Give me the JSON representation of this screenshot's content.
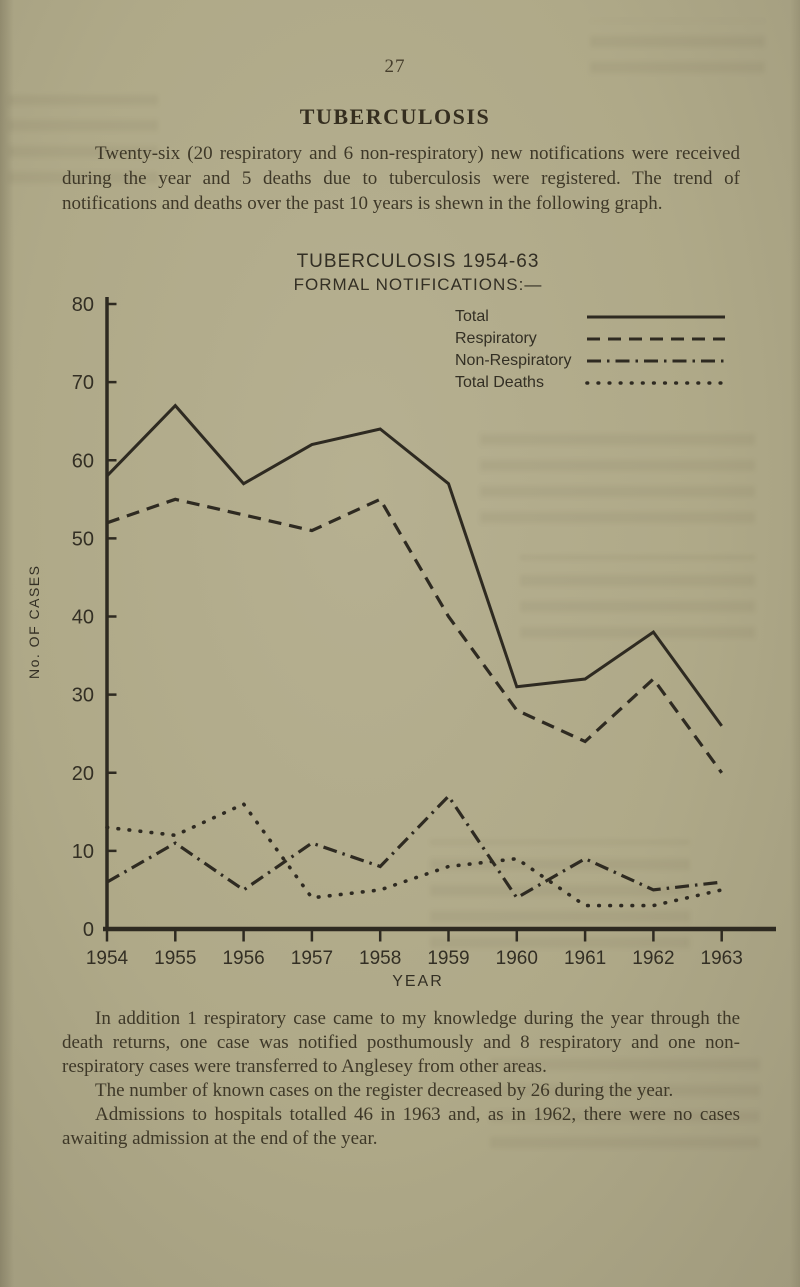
{
  "page": {
    "number": "27",
    "title": "TUBERCULOSIS",
    "intro": "Twenty-six (20 respiratory and 6 non-respiratory) new notifications were received during the year and 5 deaths due to tuberculosis were registered.  The trend of notifications and deaths over the past 10 years is shewn in the following graph.",
    "para_addition": "In addition 1 respiratory case came to my knowledge during the year through the death returns, one case was notified posthumously and 8 respiratory and one non-respiratory cases were transferred to Anglesey from other areas.",
    "para_register": "The number of known cases on the register decreased by 26 during the year.",
    "para_admissions": "Admissions to hospitals totalled 46 in 1963 and, as in 1962, there were no cases awaiting admission at the end of the year."
  },
  "chart_data": {
    "type": "line",
    "title": "TUBERCULOSIS 1954-63",
    "subtitle": "FORMAL NOTIFICATIONS:—",
    "xlabel": "YEAR",
    "ylabel": "No. OF CASES",
    "x": [
      1954,
      1955,
      1956,
      1957,
      1958,
      1959,
      1960,
      1961,
      1962,
      1963
    ],
    "ylim": [
      0,
      80
    ],
    "y_ticks": [
      0,
      10,
      20,
      30,
      40,
      50,
      60,
      70,
      80
    ],
    "grid": false,
    "legend_position": "top-right",
    "ink_color": "#2e2a21",
    "series": [
      {
        "name": "Total",
        "style": "solid",
        "values": [
          58,
          67,
          57,
          62,
          64,
          57,
          31,
          32,
          38,
          26
        ]
      },
      {
        "name": "Respiratory",
        "style": "dashed",
        "values": [
          52,
          55,
          53,
          51,
          55,
          40,
          28,
          24,
          32,
          20
        ]
      },
      {
        "name": "Non-Respiratory",
        "style": "dash-dot",
        "values": [
          6,
          11,
          5,
          11,
          8,
          17,
          4,
          9,
          5,
          6
        ]
      },
      {
        "name": "Total Deaths",
        "style": "dotted",
        "values": [
          13,
          12,
          16,
          4,
          5,
          8,
          9,
          3,
          3,
          5
        ]
      }
    ]
  }
}
